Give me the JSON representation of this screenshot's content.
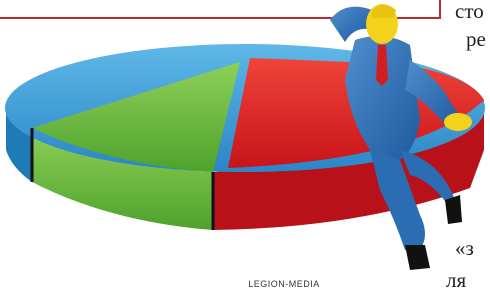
{
  "credit": "LEGION-MEDIA",
  "side_text": [
    "сто",
    "ре",
    "«з",
    "ля"
  ]
}
